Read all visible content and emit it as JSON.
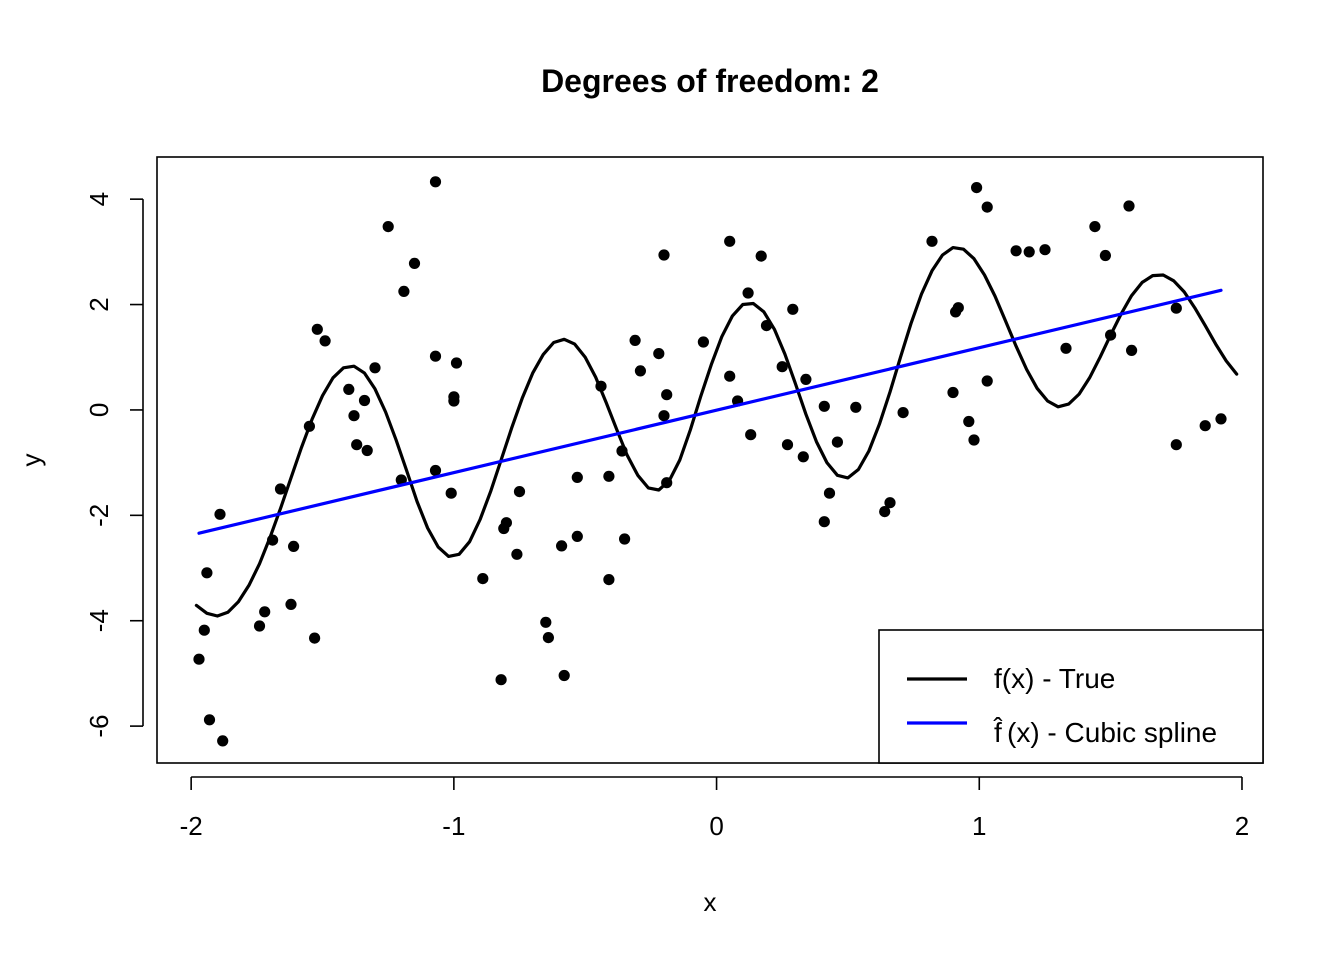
{
  "chart_data": {
    "type": "scatter",
    "title": "Degrees of freedom: 2",
    "xlabel": "x",
    "ylabel": "y",
    "xlim": [
      -2.13,
      2.08
    ],
    "ylim": [
      -6.7,
      4.8
    ],
    "x_ticks": [
      -2,
      -1,
      0,
      1,
      2
    ],
    "x_tick_labels": [
      "-2",
      "-1",
      "0",
      "1",
      "2"
    ],
    "y_ticks": [
      -6,
      -4,
      -2,
      0,
      2,
      4
    ],
    "y_tick_labels": [
      "-6",
      "-4",
      "-2",
      "0",
      "2",
      "4"
    ],
    "grid": false,
    "legend_position": "bottom-right",
    "points": [
      [
        -1.97,
        -4.73
      ],
      [
        -1.95,
        -4.18
      ],
      [
        -1.94,
        -3.09
      ],
      [
        -1.93,
        -5.88
      ],
      [
        -1.89,
        -1.98
      ],
      [
        -1.88,
        -6.28
      ],
      [
        -1.74,
        -4.1
      ],
      [
        -1.72,
        -3.83
      ],
      [
        -1.69,
        -2.47
      ],
      [
        -1.66,
        -1.5
      ],
      [
        -1.62,
        -3.69
      ],
      [
        -1.61,
        -2.59
      ],
      [
        -1.55,
        -0.31
      ],
      [
        -1.53,
        -4.33
      ],
      [
        -1.52,
        1.53
      ],
      [
        -1.49,
        1.31
      ],
      [
        -1.4,
        0.39
      ],
      [
        -1.38,
        -0.11
      ],
      [
        -1.37,
        -0.66
      ],
      [
        -1.34,
        0.18
      ],
      [
        -1.33,
        -0.77
      ],
      [
        -1.3,
        0.8
      ],
      [
        -1.25,
        3.48
      ],
      [
        -1.2,
        -1.33
      ],
      [
        -1.19,
        2.25
      ],
      [
        -1.15,
        2.78
      ],
      [
        -1.07,
        1.02
      ],
      [
        -1.07,
        -1.15
      ],
      [
        -1.07,
        4.33
      ],
      [
        -1.01,
        -1.58
      ],
      [
        -1.0,
        0.25
      ],
      [
        -1.0,
        0.17
      ],
      [
        -0.99,
        0.89
      ],
      [
        -0.89,
        -3.2
      ],
      [
        -0.82,
        -5.12
      ],
      [
        -0.81,
        -2.25
      ],
      [
        -0.8,
        -2.14
      ],
      [
        -0.76,
        -2.74
      ],
      [
        -0.75,
        -1.55
      ],
      [
        -0.65,
        -4.03
      ],
      [
        -0.64,
        -4.32
      ],
      [
        -0.59,
        -2.58
      ],
      [
        -0.58,
        -5.04
      ],
      [
        -0.53,
        -1.28
      ],
      [
        -0.53,
        -2.4
      ],
      [
        -0.44,
        0.45
      ],
      [
        -0.41,
        -1.26
      ],
      [
        -0.41,
        -3.22
      ],
      [
        -0.36,
        -0.78
      ],
      [
        -0.35,
        -2.45
      ],
      [
        -0.31,
        1.32
      ],
      [
        -0.29,
        0.74
      ],
      [
        -0.22,
        1.07
      ],
      [
        -0.2,
        2.94
      ],
      [
        -0.2,
        -0.11
      ],
      [
        -0.19,
        0.29
      ],
      [
        -0.19,
        -1.38
      ],
      [
        -0.05,
        1.29
      ],
      [
        0.05,
        3.2
      ],
      [
        0.05,
        0.64
      ],
      [
        0.08,
        0.17
      ],
      [
        0.12,
        2.22
      ],
      [
        0.13,
        -0.47
      ],
      [
        0.17,
        2.92
      ],
      [
        0.19,
        1.6
      ],
      [
        0.25,
        0.82
      ],
      [
        0.27,
        -0.66
      ],
      [
        0.29,
        1.91
      ],
      [
        0.33,
        -0.89
      ],
      [
        0.34,
        0.58
      ],
      [
        0.41,
        0.07
      ],
      [
        0.41,
        -2.12
      ],
      [
        0.43,
        -1.58
      ],
      [
        0.46,
        -0.61
      ],
      [
        0.53,
        0.05
      ],
      [
        0.64,
        -1.93
      ],
      [
        0.66,
        -1.76
      ],
      [
        0.71,
        -0.05
      ],
      [
        0.82,
        3.2
      ],
      [
        0.9,
        0.33
      ],
      [
        0.91,
        1.86
      ],
      [
        0.92,
        1.94
      ],
      [
        0.96,
        -0.22
      ],
      [
        0.98,
        -0.57
      ],
      [
        0.99,
        4.22
      ],
      [
        1.03,
        3.85
      ],
      [
        1.03,
        0.55
      ],
      [
        1.14,
        3.02
      ],
      [
        1.19,
        3.0
      ],
      [
        1.25,
        3.04
      ],
      [
        1.33,
        1.17
      ],
      [
        1.44,
        3.48
      ],
      [
        1.48,
        2.93
      ],
      [
        1.5,
        1.42
      ],
      [
        1.57,
        3.87
      ],
      [
        1.58,
        1.13
      ],
      [
        1.75,
        -0.66
      ],
      [
        1.75,
        1.93
      ],
      [
        1.86,
        -0.3
      ],
      [
        1.92,
        -0.17
      ]
    ],
    "series": [
      {
        "name": "f(x) - True",
        "color": "#000000",
        "kind": "line",
        "x": [
          -1.98,
          -1.94,
          -1.9,
          -1.86,
          -1.82,
          -1.78,
          -1.74,
          -1.7,
          -1.66,
          -1.62,
          -1.58,
          -1.54,
          -1.5,
          -1.46,
          -1.42,
          -1.38,
          -1.34,
          -1.3,
          -1.26,
          -1.22,
          -1.18,
          -1.14,
          -1.1,
          -1.06,
          -1.02,
          -0.98,
          -0.94,
          -0.9,
          -0.86,
          -0.82,
          -0.78,
          -0.74,
          -0.7,
          -0.66,
          -0.62,
          -0.58,
          -0.54,
          -0.5,
          -0.46,
          -0.42,
          -0.38,
          -0.34,
          -0.3,
          -0.26,
          -0.22,
          -0.18,
          -0.14,
          -0.1,
          -0.06,
          -0.02,
          0.02,
          0.06,
          0.1,
          0.14,
          0.18,
          0.22,
          0.26,
          0.3,
          0.34,
          0.38,
          0.42,
          0.46,
          0.5,
          0.54,
          0.58,
          0.62,
          0.66,
          0.7,
          0.74,
          0.78,
          0.82,
          0.86,
          0.9,
          0.94,
          0.98,
          1.02,
          1.06,
          1.1,
          1.14,
          1.18,
          1.22,
          1.26,
          1.3,
          1.34,
          1.38,
          1.42,
          1.46,
          1.5,
          1.54,
          1.58,
          1.62,
          1.66,
          1.7,
          1.74,
          1.78,
          1.82,
          1.86,
          1.9,
          1.94,
          1.98
        ],
        "y": [
          -3.71,
          -3.86,
          -3.91,
          -3.84,
          -3.64,
          -3.33,
          -2.92,
          -2.42,
          -1.87,
          -1.29,
          -0.71,
          -0.18,
          0.27,
          0.61,
          0.8,
          0.83,
          0.7,
          0.4,
          -0.04,
          -0.57,
          -1.15,
          -1.74,
          -2.24,
          -2.6,
          -2.78,
          -2.74,
          -2.5,
          -2.08,
          -1.55,
          -0.95,
          -0.34,
          0.22,
          0.7,
          1.05,
          1.28,
          1.34,
          1.25,
          1.0,
          0.62,
          0.14,
          -0.37,
          -0.86,
          -1.24,
          -1.48,
          -1.52,
          -1.34,
          -0.95,
          -0.38,
          0.26,
          0.86,
          1.39,
          1.78,
          2.0,
          2.02,
          1.86,
          1.53,
          1.06,
          0.5,
          -0.08,
          -0.6,
          -1.0,
          -1.24,
          -1.29,
          -1.13,
          -0.78,
          -0.27,
          0.34,
          1.0,
          1.64,
          2.2,
          2.64,
          2.94,
          3.08,
          3.05,
          2.87,
          2.56,
          2.16,
          1.69,
          1.21,
          0.77,
          0.41,
          0.17,
          0.06,
          0.11,
          0.3,
          0.61,
          1.0,
          1.42,
          1.82,
          2.17,
          2.42,
          2.55,
          2.56,
          2.45,
          2.24,
          1.94,
          1.6,
          1.25,
          0.93,
          0.68
        ]
      },
      {
        "name": "f(x) - Cubic spline",
        "color": "#0000ff",
        "kind": "line",
        "x": [
          -1.97,
          1.92
        ],
        "y": [
          -2.34,
          2.27
        ]
      }
    ],
    "legend": [
      {
        "label": "f(x) - True",
        "color": "#000000"
      },
      {
        "label": "(x) - Cubic spline",
        "hat_symbol": "f̂",
        "color": "#0000ff"
      }
    ]
  }
}
